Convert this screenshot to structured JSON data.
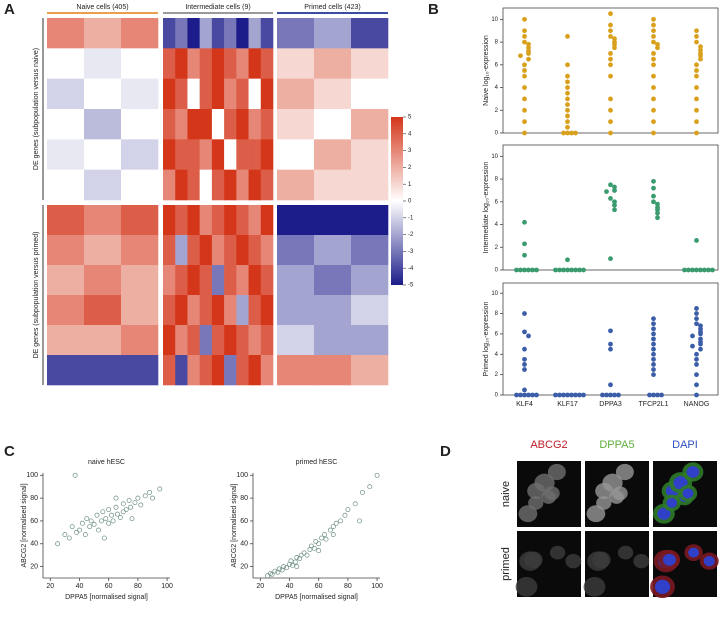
{
  "panel_labels": [
    "A",
    "B",
    "C",
    "D"
  ],
  "heatmap": {
    "columns": [
      "Naive cells (405)",
      "Intermediate cells (9)",
      "Primed cells (423)"
    ],
    "group_colors": [
      "#e8a050",
      "#9a9a9a",
      "#3a4fa0"
    ],
    "lim": [
      -5,
      5
    ],
    "colors": [
      "#1c1c8a",
      "#ffffff",
      "#d4361a"
    ],
    "colorbar_ticks": [
      5,
      4,
      3,
      2,
      1,
      0,
      -1,
      -2,
      -3,
      -4,
      -5
    ],
    "blocks": [
      {
        "label": "DE genes (subpopulation versus naive)",
        "groups": [
          [
            [
              3,
              2,
              3
            ],
            [
              0,
              -0.5,
              0
            ],
            [
              -1,
              0,
              -0.5
            ],
            [
              0,
              -1.5,
              0
            ],
            [
              -0.5,
              0,
              -1
            ],
            [
              0,
              -1,
              0
            ]
          ],
          [
            [
              -4,
              -3,
              -5,
              -2,
              -4,
              -3,
              -5,
              -2,
              -4
            ],
            [
              4,
              5,
              3,
              4,
              5,
              4,
              3,
              5,
              4
            ],
            [
              5,
              4,
              0,
              4,
              5,
              3,
              4,
              0,
              5
            ],
            [
              4,
              3,
              5,
              5,
              0,
              4,
              5,
              3,
              4
            ],
            [
              5,
              4,
              4,
              3,
              5,
              0,
              4,
              4,
              5
            ],
            [
              3,
              5,
              4,
              0,
              4,
              5,
              3,
              5,
              4
            ]
          ],
          [
            [
              -3,
              -2,
              -4
            ],
            [
              1,
              2,
              1
            ],
            [
              2,
              1,
              0
            ],
            [
              1,
              0,
              2
            ],
            [
              0,
              2,
              1
            ],
            [
              2,
              1,
              1
            ]
          ]
        ]
      },
      {
        "label": "DE genes (subpopulation versus primed)",
        "groups": [
          [
            [
              4,
              3,
              4
            ],
            [
              3,
              2,
              3
            ],
            [
              2,
              3,
              2
            ],
            [
              3,
              4,
              2
            ],
            [
              2,
              2,
              3
            ],
            [
              -4,
              -4,
              -4
            ]
          ],
          [
            [
              5,
              4,
              5,
              3,
              4,
              5,
              4,
              3,
              5
            ],
            [
              4,
              -2,
              4,
              5,
              3,
              4,
              5,
              4,
              3
            ],
            [
              3,
              4,
              5,
              4,
              -3,
              4,
              3,
              5,
              4
            ],
            [
              4,
              5,
              3,
              4,
              5,
              3,
              -2,
              4,
              5
            ],
            [
              5,
              3,
              4,
              -3,
              4,
              5,
              4,
              3,
              4
            ],
            [
              4,
              -4,
              3,
              4,
              5,
              -3,
              4,
              5,
              3
            ]
          ],
          [
            [
              -5,
              -5,
              -5
            ],
            [
              -3,
              -2,
              -3
            ],
            [
              -2,
              -3,
              -2
            ],
            [
              -2,
              -2,
              -1
            ],
            [
              -1,
              -2,
              -2
            ],
            [
              3,
              3,
              2
            ]
          ]
        ]
      }
    ]
  },
  "chart_data": [
    {
      "type": "strip",
      "ylabel": "Naive log₁₀-expression",
      "color": "#d9a01c",
      "ylim": [
        0,
        11
      ],
      "yticks": [
        0,
        2,
        4,
        6,
        8,
        10
      ],
      "values": [
        [
          10,
          9,
          8.5,
          8,
          7.8,
          7.5,
          7.2,
          7,
          6.8,
          6.5,
          6,
          5.5,
          5,
          4,
          3,
          2,
          1,
          0
        ],
        [
          8.5,
          6,
          5,
          4.5,
          4,
          3.5,
          3,
          2.5,
          2,
          1.5,
          1,
          0.5,
          0,
          0,
          0,
          0
        ],
        [
          10.5,
          9.5,
          9,
          8.5,
          8.3,
          8,
          7.8,
          7.5,
          7,
          6.5,
          6,
          5,
          3,
          2,
          1,
          0
        ],
        [
          10,
          9.5,
          9,
          8.5,
          8,
          7.8,
          7.5,
          7,
          6.5,
          6,
          5,
          4,
          3,
          2,
          1,
          0
        ],
        [
          9,
          8.5,
          8,
          7.6,
          7.3,
          7,
          6.8,
          6.5,
          6,
          5.5,
          5,
          4,
          3,
          2,
          1,
          0
        ]
      ]
    },
    {
      "type": "strip",
      "ylabel": "Intermediate log₁₀-expression",
      "color": "#3a9b6e",
      "ylim": [
        0,
        11
      ],
      "yticks": [
        0,
        2,
        4,
        6,
        8,
        10
      ],
      "values": [
        [
          4.2,
          2.3,
          1.3,
          0,
          0,
          0,
          0,
          0,
          0
        ],
        [
          0.9,
          0,
          0,
          0,
          0,
          0,
          0,
          0,
          0
        ],
        [
          7.5,
          7.3,
          7,
          6.9,
          6.3,
          6,
          5.7,
          5.3,
          1
        ],
        [
          7.8,
          7.2,
          6.5,
          6,
          5.8,
          5.5,
          5.3,
          5,
          4.6
        ],
        [
          2.6,
          0,
          0,
          0,
          0,
          0,
          0,
          0,
          0
        ]
      ]
    },
    {
      "type": "strip",
      "ylabel": "Primed log₁₀-expression",
      "color": "#3c5ea8",
      "ylim": [
        0,
        11
      ],
      "yticks": [
        0,
        2,
        4,
        6,
        8,
        10
      ],
      "categories": [
        "KLF4",
        "KLF17",
        "DPPA3",
        "TFCP2L1",
        "NANOG"
      ],
      "values": [
        [
          8,
          6.2,
          5.8,
          4.5,
          3.5,
          3,
          2.5,
          0.5,
          0,
          0,
          0,
          0,
          0,
          0
        ],
        [
          0,
          0,
          0,
          0,
          0,
          0,
          0,
          0
        ],
        [
          6.3,
          5,
          4.5,
          1,
          0,
          0,
          0,
          0,
          0
        ],
        [
          7.5,
          7,
          6.5,
          6,
          5.5,
          5,
          4.5,
          4,
          3.5,
          3,
          2.5,
          2,
          0,
          0,
          0,
          0
        ],
        [
          8.5,
          8,
          7.5,
          7,
          6.8,
          6.5,
          6.2,
          6,
          5.8,
          5.5,
          5.2,
          5,
          4.8,
          4.5,
          4,
          3.5,
          3,
          2,
          1,
          0
        ]
      ]
    },
    {
      "type": "scatter",
      "title": "naive hESC",
      "xlabel": "DPPA5 [normalised signal]",
      "ylabel": "ABCG2 [normalised signal]",
      "color": "#6e8f86",
      "xlim": [
        15,
        102
      ],
      "ylim": [
        10,
        102
      ],
      "xticks": [
        20,
        40,
        60,
        80,
        100
      ],
      "yticks": [
        20,
        40,
        60,
        80,
        100
      ],
      "x": [
        25,
        30,
        33,
        35,
        38,
        40,
        42,
        44,
        45,
        47,
        48,
        50,
        52,
        53,
        55,
        56,
        58,
        60,
        60,
        62,
        63,
        65,
        66,
        68,
        70,
        70,
        72,
        74,
        75,
        78,
        80,
        82,
        85,
        88,
        90,
        95,
        37,
        57,
        65,
        76
      ],
      "y": [
        40,
        48,
        45,
        55,
        50,
        52,
        58,
        48,
        62,
        55,
        60,
        57,
        65,
        52,
        60,
        68,
        62,
        58,
        70,
        65,
        60,
        72,
        66,
        63,
        75,
        68,
        70,
        78,
        72,
        76,
        80,
        74,
        82,
        85,
        80,
        88,
        100,
        45,
        80,
        62
      ]
    },
    {
      "type": "scatter",
      "title": "primed hESC",
      "xlabel": "DPPA5 [normalised signal]",
      "ylabel": "ABCG2 [normalised signal]",
      "color": "#6e8f86",
      "xlim": [
        15,
        102
      ],
      "ylim": [
        10,
        102
      ],
      "xticks": [
        20,
        40,
        60,
        80,
        100
      ],
      "yticks": [
        20,
        40,
        60,
        80,
        100
      ],
      "x": [
        25,
        27,
        28,
        30,
        32,
        33,
        35,
        36,
        38,
        40,
        41,
        42,
        44,
        45,
        47,
        48,
        50,
        52,
        54,
        55,
        57,
        58,
        60,
        62,
        64,
        65,
        68,
        70,
        72,
        75,
        78,
        80,
        85,
        90,
        95,
        100,
        45,
        60,
        70,
        88
      ],
      "y": [
        12,
        14,
        13,
        16,
        15,
        18,
        17,
        20,
        19,
        22,
        25,
        21,
        24,
        28,
        27,
        30,
        32,
        30,
        35,
        38,
        36,
        42,
        40,
        45,
        48,
        44,
        52,
        55,
        58,
        60,
        65,
        70,
        75,
        85,
        90,
        100,
        20,
        34,
        48,
        60
      ]
    }
  ],
  "micrographs": {
    "channels": [
      {
        "name": "ABCG2",
        "color": "#c0202a"
      },
      {
        "name": "DPPA5",
        "color": "#5fae3c"
      },
      {
        "name": "DAPI",
        "color": "#2f4fc0"
      }
    ],
    "rows": [
      "naive",
      "primed"
    ]
  }
}
